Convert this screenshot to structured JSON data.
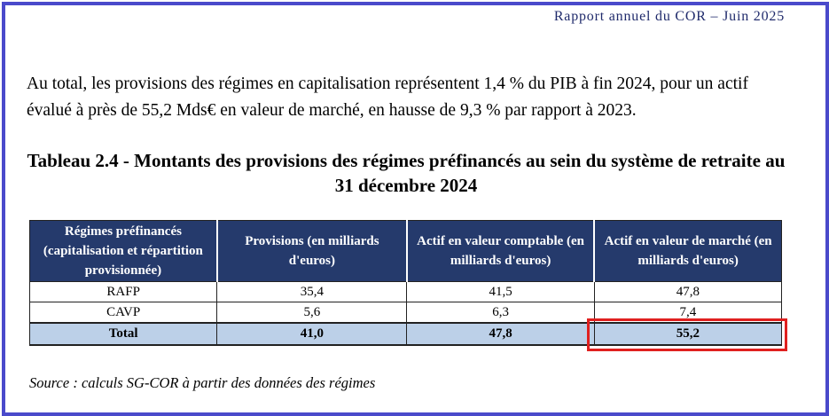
{
  "header": "Rapport annuel du COR – Juin 2025",
  "paragraph": "Au total, les provisions des régimes en capitalisation représentent 1,4 % du PIB à fin 2024, pour un actif évalué à près de 55,2 Mds€ en valeur de marché, en hausse de 9,3 % par rapport à 2023.",
  "table": {
    "title": "Tableau 2.4 - Montants des provisions des régimes préfinancés au sein du système de retraite au 31 décembre 2024",
    "columns": [
      "Régimes préfinancés (capitalisation et répartition provisionnée)",
      "Provisions (en milliards d'euros)",
      "Actif en valeur comptable (en milliards d'euros)",
      "Actif  en valeur de marché (en milliards d'euros)"
    ],
    "rows": [
      [
        "RAFP",
        "35,4",
        "41,5",
        "47,8"
      ],
      [
        "CAVP",
        "5,6",
        "6,3",
        "7,4"
      ]
    ],
    "total": [
      "Total",
      "41,0",
      "47,8",
      "55,2"
    ]
  },
  "source": "Source : calculs SG-COR à partir des données des régimes",
  "colors": {
    "frame": "#4a4acb",
    "table_header_bg": "#253a6c",
    "total_row_bg": "#bcd0e8",
    "highlight_box": "#e0201f"
  }
}
